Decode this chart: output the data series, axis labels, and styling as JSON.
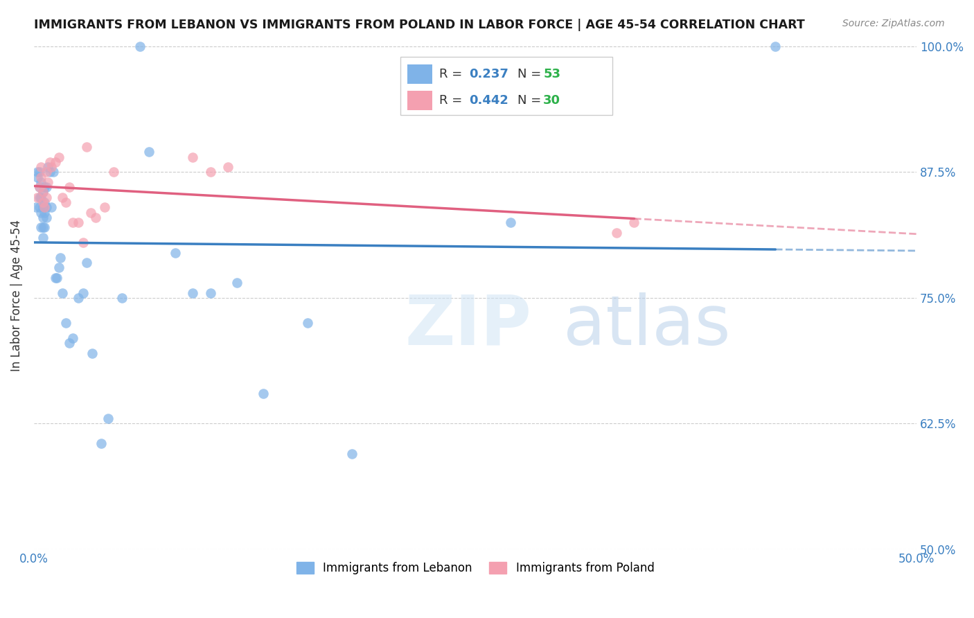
{
  "title": "IMMIGRANTS FROM LEBANON VS IMMIGRANTS FROM POLAND IN LABOR FORCE | AGE 45-54 CORRELATION CHART",
  "source": "Source: ZipAtlas.com",
  "ylabel_label": "In Labor Force | Age 45-54",
  "x_min": 0.0,
  "x_max": 0.5,
  "y_min": 0.5,
  "y_max": 1.005,
  "x_ticks": [
    0.0,
    0.1,
    0.2,
    0.3,
    0.4,
    0.5
  ],
  "x_tick_labels": [
    "0.0%",
    "",
    "",
    "",
    "",
    "50.0%"
  ],
  "y_ticks": [
    0.5,
    0.625,
    0.75,
    0.875,
    1.0
  ],
  "y_tick_labels": [
    "50.0%",
    "62.5%",
    "75.0%",
    "87.5%",
    "100.0%"
  ],
  "lebanon_R": 0.237,
  "lebanon_N": 53,
  "poland_R": 0.442,
  "poland_N": 30,
  "lebanon_color": "#7fb3e8",
  "poland_color": "#f4a0b0",
  "lebanon_line_color": "#3a7fc1",
  "poland_line_color": "#e06080",
  "legend_R_color": "#3a7fc1",
  "legend_N_color": "#2db14a",
  "lebanon_x": [
    0.001,
    0.002,
    0.002,
    0.003,
    0.003,
    0.003,
    0.003,
    0.004,
    0.004,
    0.004,
    0.004,
    0.005,
    0.005,
    0.005,
    0.005,
    0.005,
    0.006,
    0.006,
    0.006,
    0.006,
    0.007,
    0.007,
    0.007,
    0.008,
    0.009,
    0.01,
    0.011,
    0.012,
    0.013,
    0.014,
    0.015,
    0.016,
    0.018,
    0.02,
    0.022,
    0.025,
    0.028,
    0.03,
    0.033,
    0.038,
    0.042,
    0.05,
    0.06,
    0.065,
    0.08,
    0.09,
    0.1,
    0.115,
    0.13,
    0.155,
    0.18,
    0.27,
    0.42
  ],
  "lebanon_y": [
    0.84,
    0.87,
    0.875,
    0.84,
    0.85,
    0.86,
    0.875,
    0.82,
    0.835,
    0.85,
    0.865,
    0.81,
    0.82,
    0.83,
    0.84,
    0.855,
    0.82,
    0.835,
    0.845,
    0.86,
    0.83,
    0.84,
    0.86,
    0.88,
    0.875,
    0.84,
    0.875,
    0.77,
    0.77,
    0.78,
    0.79,
    0.755,
    0.725,
    0.705,
    0.71,
    0.75,
    0.755,
    0.785,
    0.695,
    0.605,
    0.63,
    0.75,
    1.0,
    0.895,
    0.795,
    0.755,
    0.755,
    0.765,
    0.655,
    0.725,
    0.595,
    0.825,
    1.0
  ],
  "poland_x": [
    0.002,
    0.003,
    0.004,
    0.004,
    0.005,
    0.005,
    0.006,
    0.007,
    0.007,
    0.008,
    0.009,
    0.01,
    0.012,
    0.014,
    0.016,
    0.018,
    0.02,
    0.022,
    0.025,
    0.028,
    0.03,
    0.032,
    0.035,
    0.04,
    0.045,
    0.09,
    0.1,
    0.11,
    0.33,
    0.34
  ],
  "poland_y": [
    0.85,
    0.86,
    0.87,
    0.88,
    0.845,
    0.855,
    0.84,
    0.85,
    0.875,
    0.865,
    0.885,
    0.88,
    0.885,
    0.89,
    0.85,
    0.845,
    0.86,
    0.825,
    0.825,
    0.805,
    0.9,
    0.835,
    0.83,
    0.84,
    0.875,
    0.89,
    0.875,
    0.88,
    0.815,
    0.825
  ]
}
